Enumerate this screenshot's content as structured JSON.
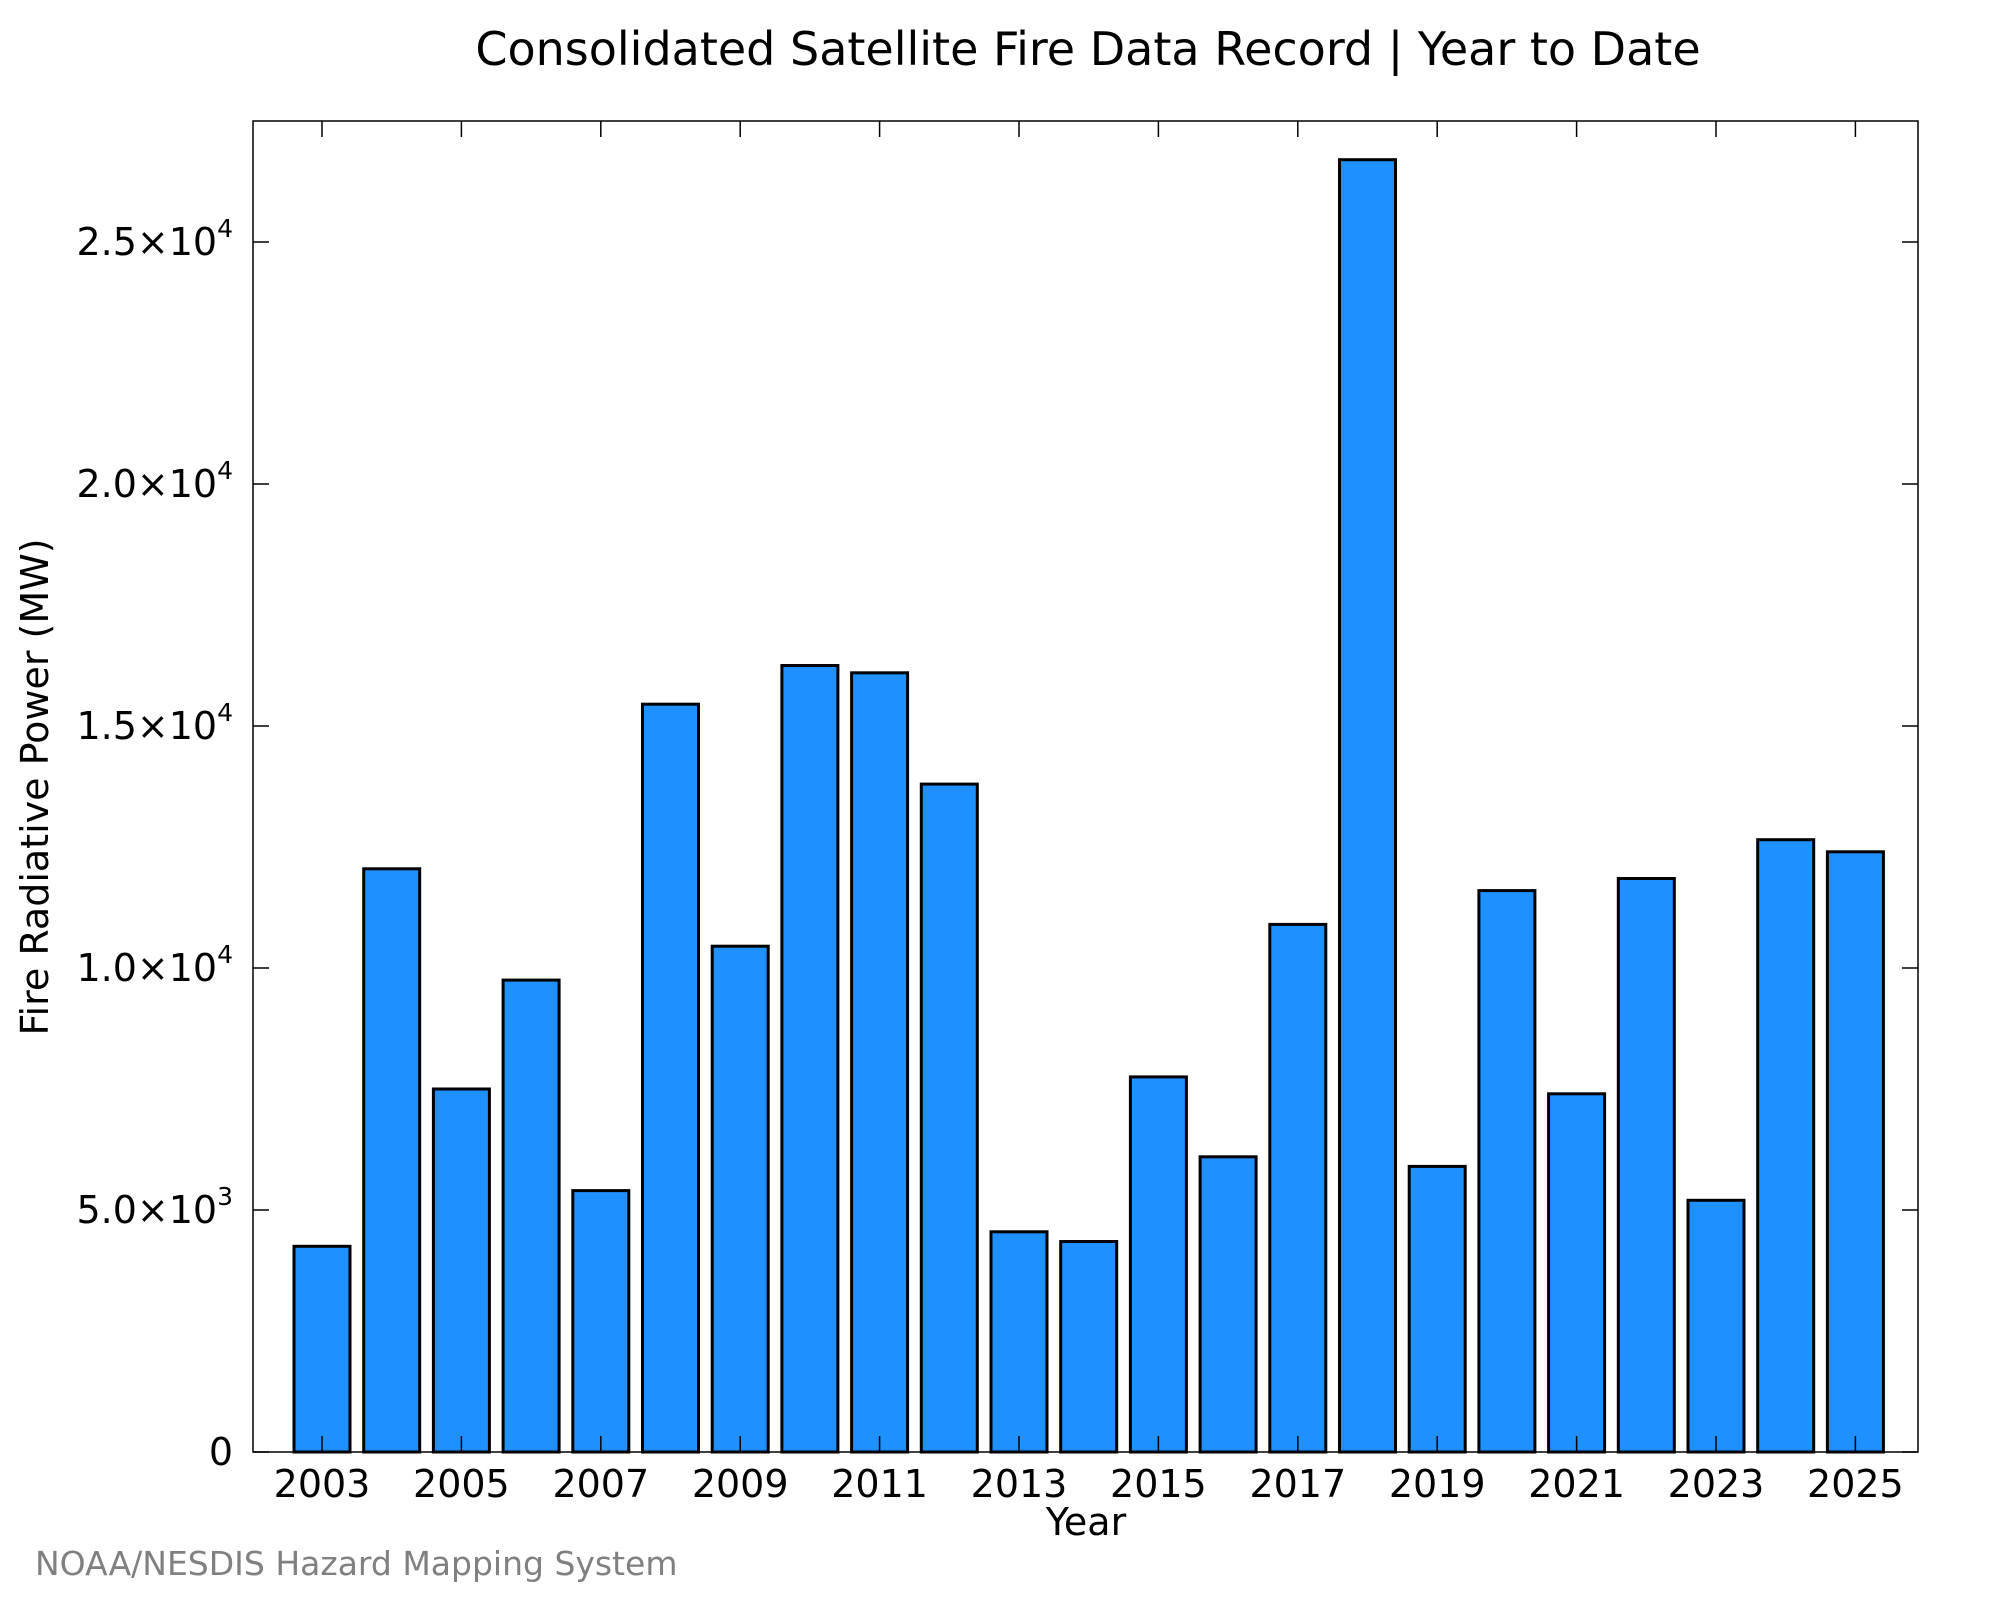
{
  "chart_data": {
    "type": "bar",
    "title": "Consolidated Satellite Fire Data Record | Year to Date",
    "xlabel": "Year",
    "ylabel": "Fire Radiative Power (MW)",
    "categories": [
      "2003",
      "2004",
      "2005",
      "2006",
      "2007",
      "2008",
      "2009",
      "2010",
      "2011",
      "2012",
      "2013",
      "2014",
      "2015",
      "2016",
      "2017",
      "2018",
      "2019",
      "2020",
      "2021",
      "2022",
      "2023",
      "2024",
      "2025"
    ],
    "values": [
      4250,
      12050,
      7500,
      9750,
      5400,
      15450,
      10450,
      16250,
      16100,
      13800,
      4550,
      4350,
      7750,
      6100,
      10900,
      26700,
      5900,
      11600,
      7400,
      11850,
      5200,
      12650,
      12400
    ],
    "ylim": [
      0,
      27500
    ],
    "x_tick_labels": [
      "2003",
      "2005",
      "2007",
      "2009",
      "2011",
      "2013",
      "2015",
      "2017",
      "2019",
      "2021",
      "2023",
      "2025"
    ],
    "y_ticks": [
      {
        "value": 0,
        "mantissa": "0",
        "exp": ""
      },
      {
        "value": 5000,
        "mantissa": "5.0×10",
        "exp": "3"
      },
      {
        "value": 10000,
        "mantissa": "1.0×10",
        "exp": "4"
      },
      {
        "value": 15000,
        "mantissa": "1.5×10",
        "exp": "4"
      },
      {
        "value": 20000,
        "mantissa": "2.0×10",
        "exp": "4"
      },
      {
        "value": 25000,
        "mantissa": "2.5×10",
        "exp": "4"
      }
    ],
    "grid": false,
    "legend": "none",
    "bar_color": "#1E90FF",
    "edge_color": "#000000"
  },
  "credit": "NOAA/NESDIS Hazard Mapping System"
}
